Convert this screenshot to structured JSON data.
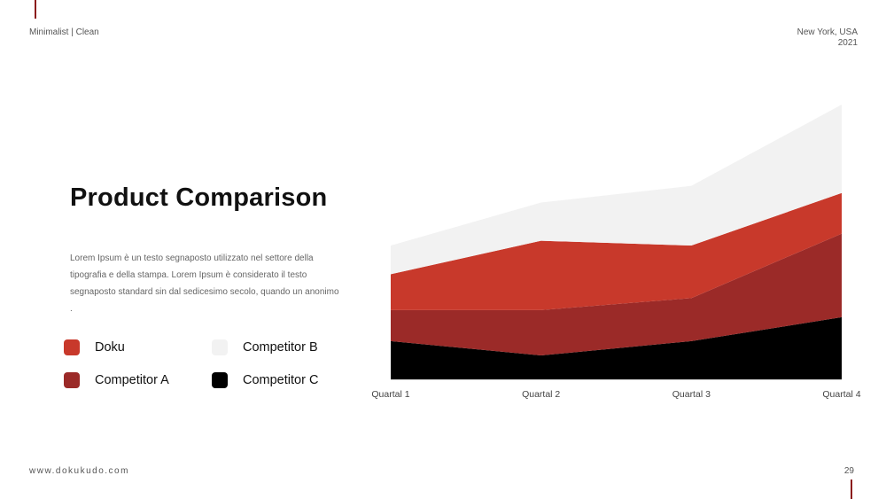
{
  "header": {
    "tagline": "Minimalist | Clean",
    "location_line1": "New York, USA",
    "location_line2": "2021"
  },
  "slide": {
    "title": "Product Comparison",
    "description": "Lorem Ipsum è un testo segnaposto utilizzato nel settore della tipografia e della stampa. Lorem Ipsum è considerato il testo segnaposto standard sin dal sedicesimo secolo, quando un anonimo ."
  },
  "footer": {
    "url": "www.dokukudo.com",
    "page_number": "29"
  },
  "colors": {
    "accent": "#8b1c1c"
  },
  "chart_data": {
    "type": "area",
    "stacked": true,
    "categories": [
      "Quartal 1",
      "Quartal 2",
      "Quartal 3",
      "Quartal 4"
    ],
    "series": [
      {
        "name": "Competitor C",
        "color": "#000000",
        "values": [
          1.6,
          1.0,
          1.6,
          2.6
        ]
      },
      {
        "name": "Competitor A",
        "color": "#9b2a28",
        "values": [
          1.3,
          1.9,
          1.8,
          3.5
        ]
      },
      {
        "name": "Doku",
        "color": "#c8392b",
        "values": [
          1.5,
          2.9,
          2.2,
          1.7
        ]
      },
      {
        "name": "Competitor B",
        "color": "#f2f2f2",
        "values": [
          1.2,
          1.6,
          2.5,
          3.7
        ]
      }
    ],
    "ylim": [
      0,
      11.5
    ],
    "grid": false,
    "legend_position": "left"
  },
  "legend": [
    {
      "label": "Doku",
      "color": "#c8392b"
    },
    {
      "label": "Competitor B",
      "color": "#f2f2f2"
    },
    {
      "label": "Competitor A",
      "color": "#9b2a28"
    },
    {
      "label": "Competitor C",
      "color": "#000000"
    }
  ]
}
